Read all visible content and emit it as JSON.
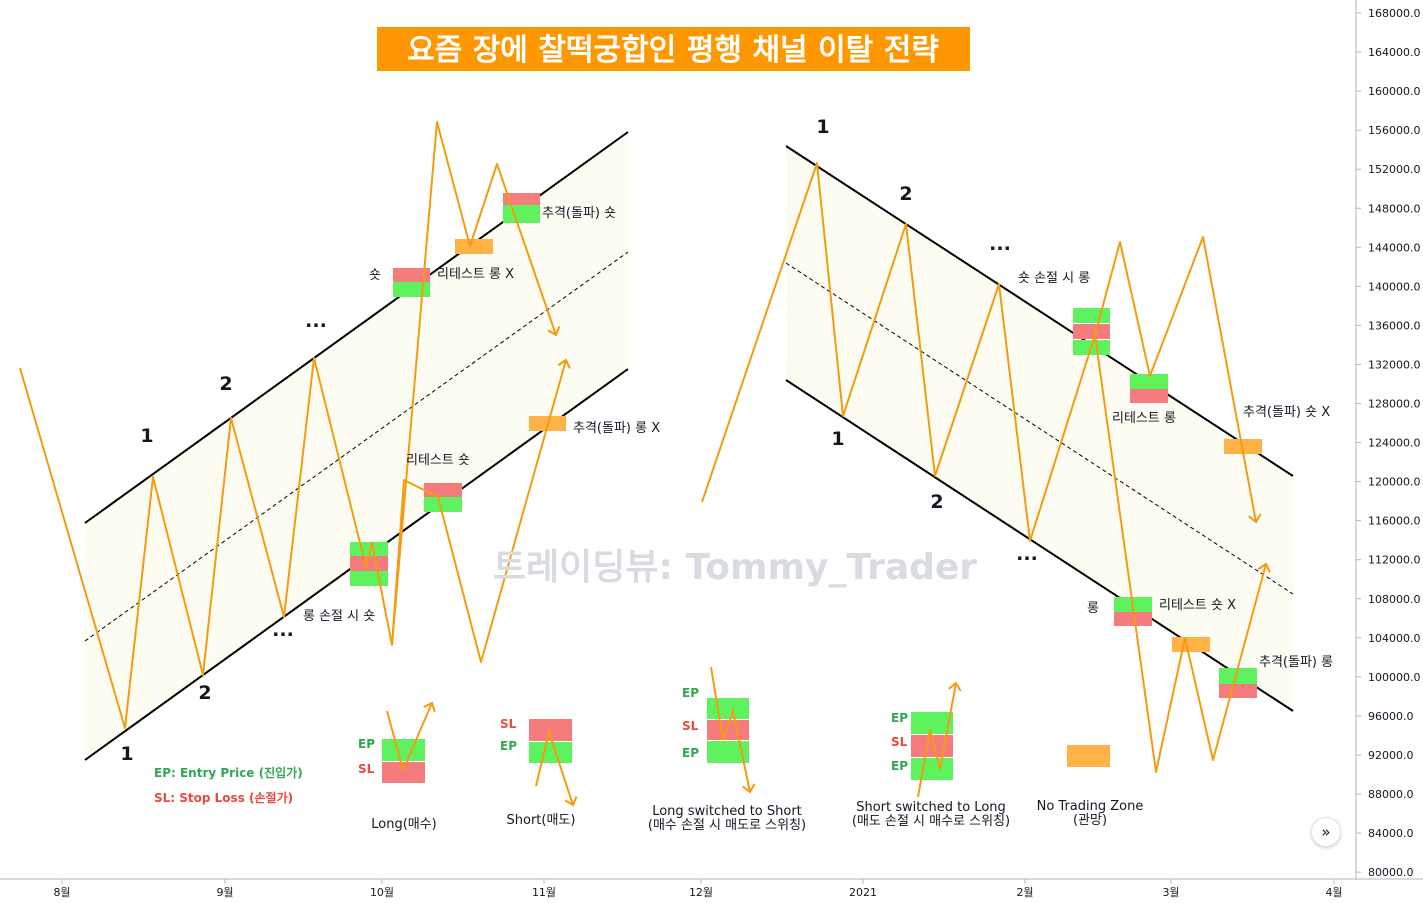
{
  "title": "요즘 장에 찰떡궁합인 평행 채널 이탈 전략",
  "watermark": "트레이딩뷰: Tommy_Trader",
  "colors": {
    "accent": "#f39c12",
    "title_bg": "#ff9800",
    "green": "#5ef35e",
    "red": "#f47c7c",
    "orange_box": "#ffb347",
    "channel_fill": "#fdfcf3"
  },
  "chart_data": {
    "type": "line",
    "y_axis": {
      "ticks": [
        "168000.0",
        "164000.0",
        "160000.0",
        "156000.0",
        "152000.0",
        "148000.0",
        "144000.0",
        "140000.0",
        "136000.0",
        "132000.0",
        "128000.0",
        "124000.0",
        "120000.0",
        "116000.0",
        "112000.0",
        "108000.0",
        "104000.0",
        "100000.0",
        "96000.0",
        "92000.0",
        "88000.0",
        "84000.0",
        "80000.0"
      ]
    },
    "x_axis": {
      "ticks": [
        "8월",
        "9월",
        "10월",
        "11월",
        "12월",
        "2021",
        "2월",
        "3월",
        "4월"
      ]
    },
    "left_channel": {
      "labels": {
        "upper_1": "1",
        "upper_2": "2",
        "upper_dots": "...",
        "lower_1": "1",
        "lower_2": "2",
        "lower_dots": "..."
      },
      "annotations": [
        "추격(돌파) 숏",
        "숏",
        "리테스트 롱 X",
        "롱 손절 시 숏",
        "리테스트 숏",
        "추격(돌파) 롱 X"
      ]
    },
    "right_channel": {
      "labels": {
        "upper_1": "1",
        "upper_2": "2",
        "upper_dots": "...",
        "lower_1": "1",
        "lower_2": "2",
        "lower_dots": "..."
      },
      "annotations": [
        "숏 손절 시 롱",
        "리테스트 롱",
        "추격(돌파) 숏 X",
        "롱",
        "리테스트 숏 X",
        "추격(돌파) 롱"
      ]
    }
  },
  "legend": {
    "ep": "EP: Entry Price (진입가)",
    "sl": "SL: Stop Loss (손절가)",
    "ep_short": "EP",
    "sl_short": "SL",
    "long": "Long(매수)",
    "short": "Short(매도)",
    "long_to_short_1": "Long switched to Short",
    "long_to_short_2": "(매수 손절 시 매도로 스위칭)",
    "short_to_long_1": "Short switched to Long",
    "short_to_long_2": "(매도 손절 시 매수로 스위칭)",
    "no_trade_1": "No Trading Zone",
    "no_trade_2": "(관망)"
  },
  "scroll_button": {
    "icon": "double-chevron-right-icon",
    "glyph": "»"
  }
}
